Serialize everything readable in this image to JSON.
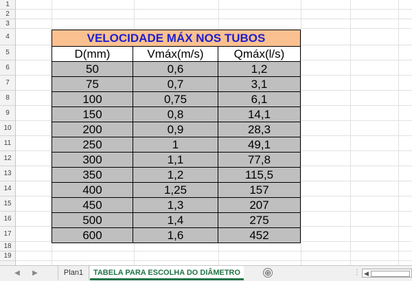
{
  "rows": [
    "1",
    "2",
    "3",
    "4",
    "5",
    "6",
    "7",
    "8",
    "9",
    "10",
    "11",
    "12",
    "13",
    "14",
    "15",
    "16",
    "17",
    "18",
    "19"
  ],
  "table": {
    "title": "VELOCIDADE MÁX NOS TUBOS",
    "headers": [
      "D(mm)",
      "Vmáx(m/s)",
      "Qmáx(l/s)"
    ],
    "data": [
      [
        "50",
        "0,6",
        "1,2"
      ],
      [
        "75",
        "0,7",
        "3,1"
      ],
      [
        "100",
        "0,75",
        "6,1"
      ],
      [
        "150",
        "0,8",
        "14,1"
      ],
      [
        "200",
        "0,9",
        "28,3"
      ],
      [
        "250",
        "1",
        "49,1"
      ],
      [
        "300",
        "1,1",
        "77,8"
      ],
      [
        "350",
        "1,2",
        "115,5"
      ],
      [
        "400",
        "1,25",
        "157"
      ],
      [
        "450",
        "1,3",
        "207"
      ],
      [
        "500",
        "1,4",
        "275"
      ],
      [
        "600",
        "1,6",
        "452"
      ]
    ]
  },
  "sheets": {
    "tab1": "Plan1",
    "tab2": "TABELA PARA ESCOLHA DO DIÂMETRO",
    "add": "⊕",
    "nav_prev": "◀",
    "nav_next": "▶",
    "ellipsis": "⋮",
    "scroll_left": "◀"
  },
  "colors": {
    "title_bg": "#fac090",
    "title_text": "#1f1fcc",
    "data_bg": "#bfbfbf",
    "active_tab": "#217346"
  }
}
